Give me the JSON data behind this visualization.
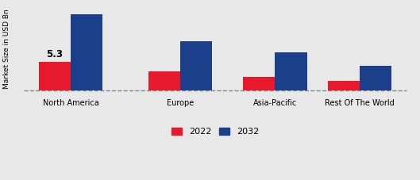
{
  "categories": [
    "North America",
    "Europe",
    "Asia-Pacific",
    "Rest Of The World"
  ],
  "values_2022": [
    5.3,
    3.5,
    2.5,
    1.8
  ],
  "values_2032": [
    14.0,
    9.0,
    7.0,
    4.5
  ],
  "annotation_text": "5.3",
  "annotation_category": 0,
  "color_2022": "#e8192c",
  "color_2032": "#1b3f8b",
  "ylabel": "Market Size in USD Bn",
  "legend_labels": [
    "2022",
    "2032"
  ],
  "bar_width": 0.32,
  "group_positions": [
    0,
    1.1,
    2.05,
    2.9
  ],
  "background_color": "#e8e8e8",
  "ylim_min": -0.8,
  "ylim_max": 16.0,
  "dashed_line_y": 0.0
}
